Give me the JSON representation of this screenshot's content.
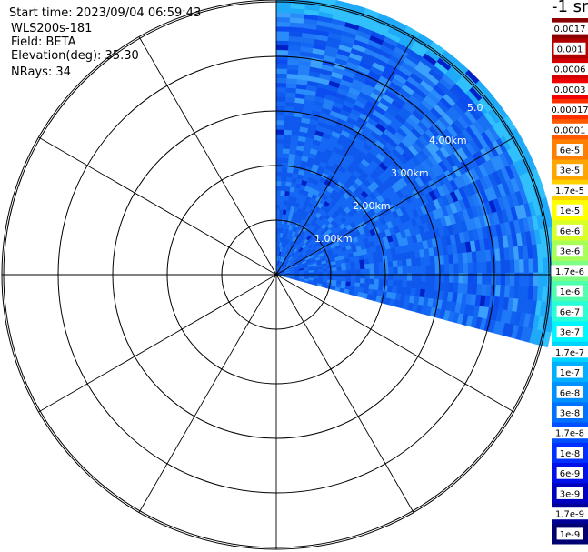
{
  "info": {
    "start_time": "Start time: 2023/09/04 06:59:43",
    "instrument": "WLS200s-181",
    "field": "Field: BETA",
    "elevation": "Elevation(deg): 35.30",
    "nrays": "NRays: 34"
  },
  "range_rings": [
    "1.00km",
    "2.00km",
    "3.00km",
    "4.00km",
    "5.0"
  ],
  "scan": {
    "azimuth_start_deg": 0,
    "azimuth_end_deg": 105,
    "max_range_km": 5.15
  },
  "colorbar": {
    "unit": "-1 sr",
    "levels": [
      {
        "label": "0.0017",
        "color": "#8b0000"
      },
      {
        "label": "0.001",
        "color": "#b00000"
      },
      {
        "label": "0.0006",
        "color": "#d40000"
      },
      {
        "label": "0.0003",
        "color": "#f00000"
      },
      {
        "label": "0.00017",
        "color": "#ff3000"
      },
      {
        "label": "0.0001",
        "color": "#ff5a00"
      },
      {
        "label": "6e-5",
        "color": "#ff8000"
      },
      {
        "label": "3e-5",
        "color": "#ffa500"
      },
      {
        "label": "1.7e-5",
        "color": "#ffd000"
      },
      {
        "label": "1e-5",
        "color": "#ffff00"
      },
      {
        "label": "6e-6",
        "color": "#d8ff28"
      },
      {
        "label": "3e-6",
        "color": "#a8ff58"
      },
      {
        "label": "1.7e-6",
        "color": "#7cff82"
      },
      {
        "label": "1e-6",
        "color": "#50ffae"
      },
      {
        "label": "6e-7",
        "color": "#28ffd6"
      },
      {
        "label": "3e-7",
        "color": "#00f6ff"
      },
      {
        "label": "1.7e-7",
        "color": "#00d4ff"
      },
      {
        "label": "1e-7",
        "color": "#00b0ff"
      },
      {
        "label": "6e-8",
        "color": "#0090ff"
      },
      {
        "label": "3e-8",
        "color": "#0070ff"
      },
      {
        "label": "1.7e-8",
        "color": "#0050ff"
      },
      {
        "label": "1e-8",
        "color": "#0030ff"
      },
      {
        "label": "6e-9",
        "color": "#0010e8"
      },
      {
        "label": "3e-9",
        "color": "#0000c0"
      },
      {
        "label": "1.7e-9",
        "color": "#000098"
      },
      {
        "label": "1e-9",
        "color": "#000070"
      }
    ]
  }
}
